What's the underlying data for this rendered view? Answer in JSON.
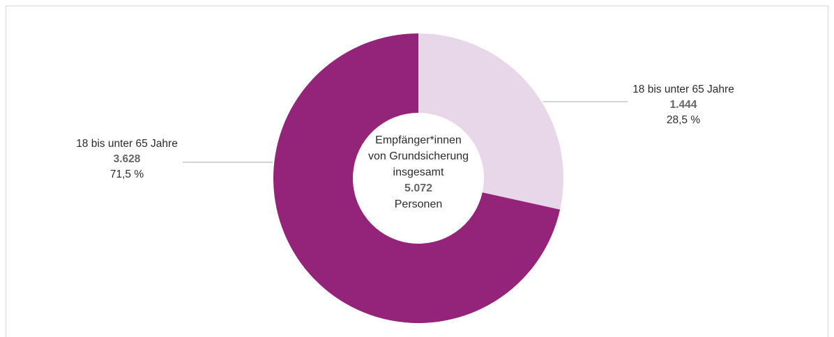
{
  "chart_data": {
    "type": "pie",
    "style": "donut",
    "center_label": {
      "line1": "Empfänger*innen",
      "line2": "von Grundsicherung",
      "line3": "insgesamt",
      "total": "5.072",
      "unit": "Personen"
    },
    "slices": [
      {
        "label": "18 bis unter 65 Jahre",
        "value": 1444,
        "value_text": "1.444",
        "percent": 28.5,
        "percent_text": "28,5 %",
        "color": "#e8d6e9"
      },
      {
        "label": "18 bis unter 65 Jahre",
        "value": 3628,
        "value_text": "3.628",
        "percent": 71.5,
        "percent_text": "71,5 %",
        "color": "#93247a"
      }
    ]
  }
}
